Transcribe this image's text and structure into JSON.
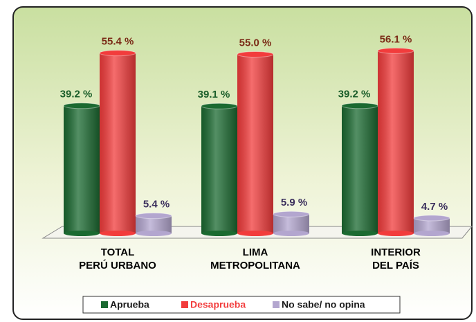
{
  "chart_data": {
    "type": "bar",
    "categories": [
      [
        "TOTAL",
        "PERÚ URBANO"
      ],
      [
        "LIMA",
        "METROPOLITANA"
      ],
      [
        "INTERIOR",
        "DEL PAÍS"
      ]
    ],
    "series": [
      {
        "name": "Aprueba",
        "color": "#1b6a31",
        "label_color": "#1b5e2a",
        "values": [
          39.2,
          39.1,
          39.2
        ],
        "value_labels": [
          "39.2 %",
          "39.1 %",
          "39.2 %"
        ]
      },
      {
        "name": "Desaprueba",
        "color": "#f23c3c",
        "label_color": "#7a2a16",
        "values": [
          55.4,
          55.0,
          56.1
        ],
        "value_labels": [
          "55.4 %",
          "55.0 %",
          "56.1 %"
        ]
      },
      {
        "name": "No sabe/ no opina",
        "color": "#b3a6cf",
        "label_color": "#3b2f5c",
        "values": [
          5.4,
          5.9,
          4.7
        ],
        "value_labels": [
          "5.4 %",
          "5.9 %",
          "4.7 %"
        ]
      }
    ]
  }
}
